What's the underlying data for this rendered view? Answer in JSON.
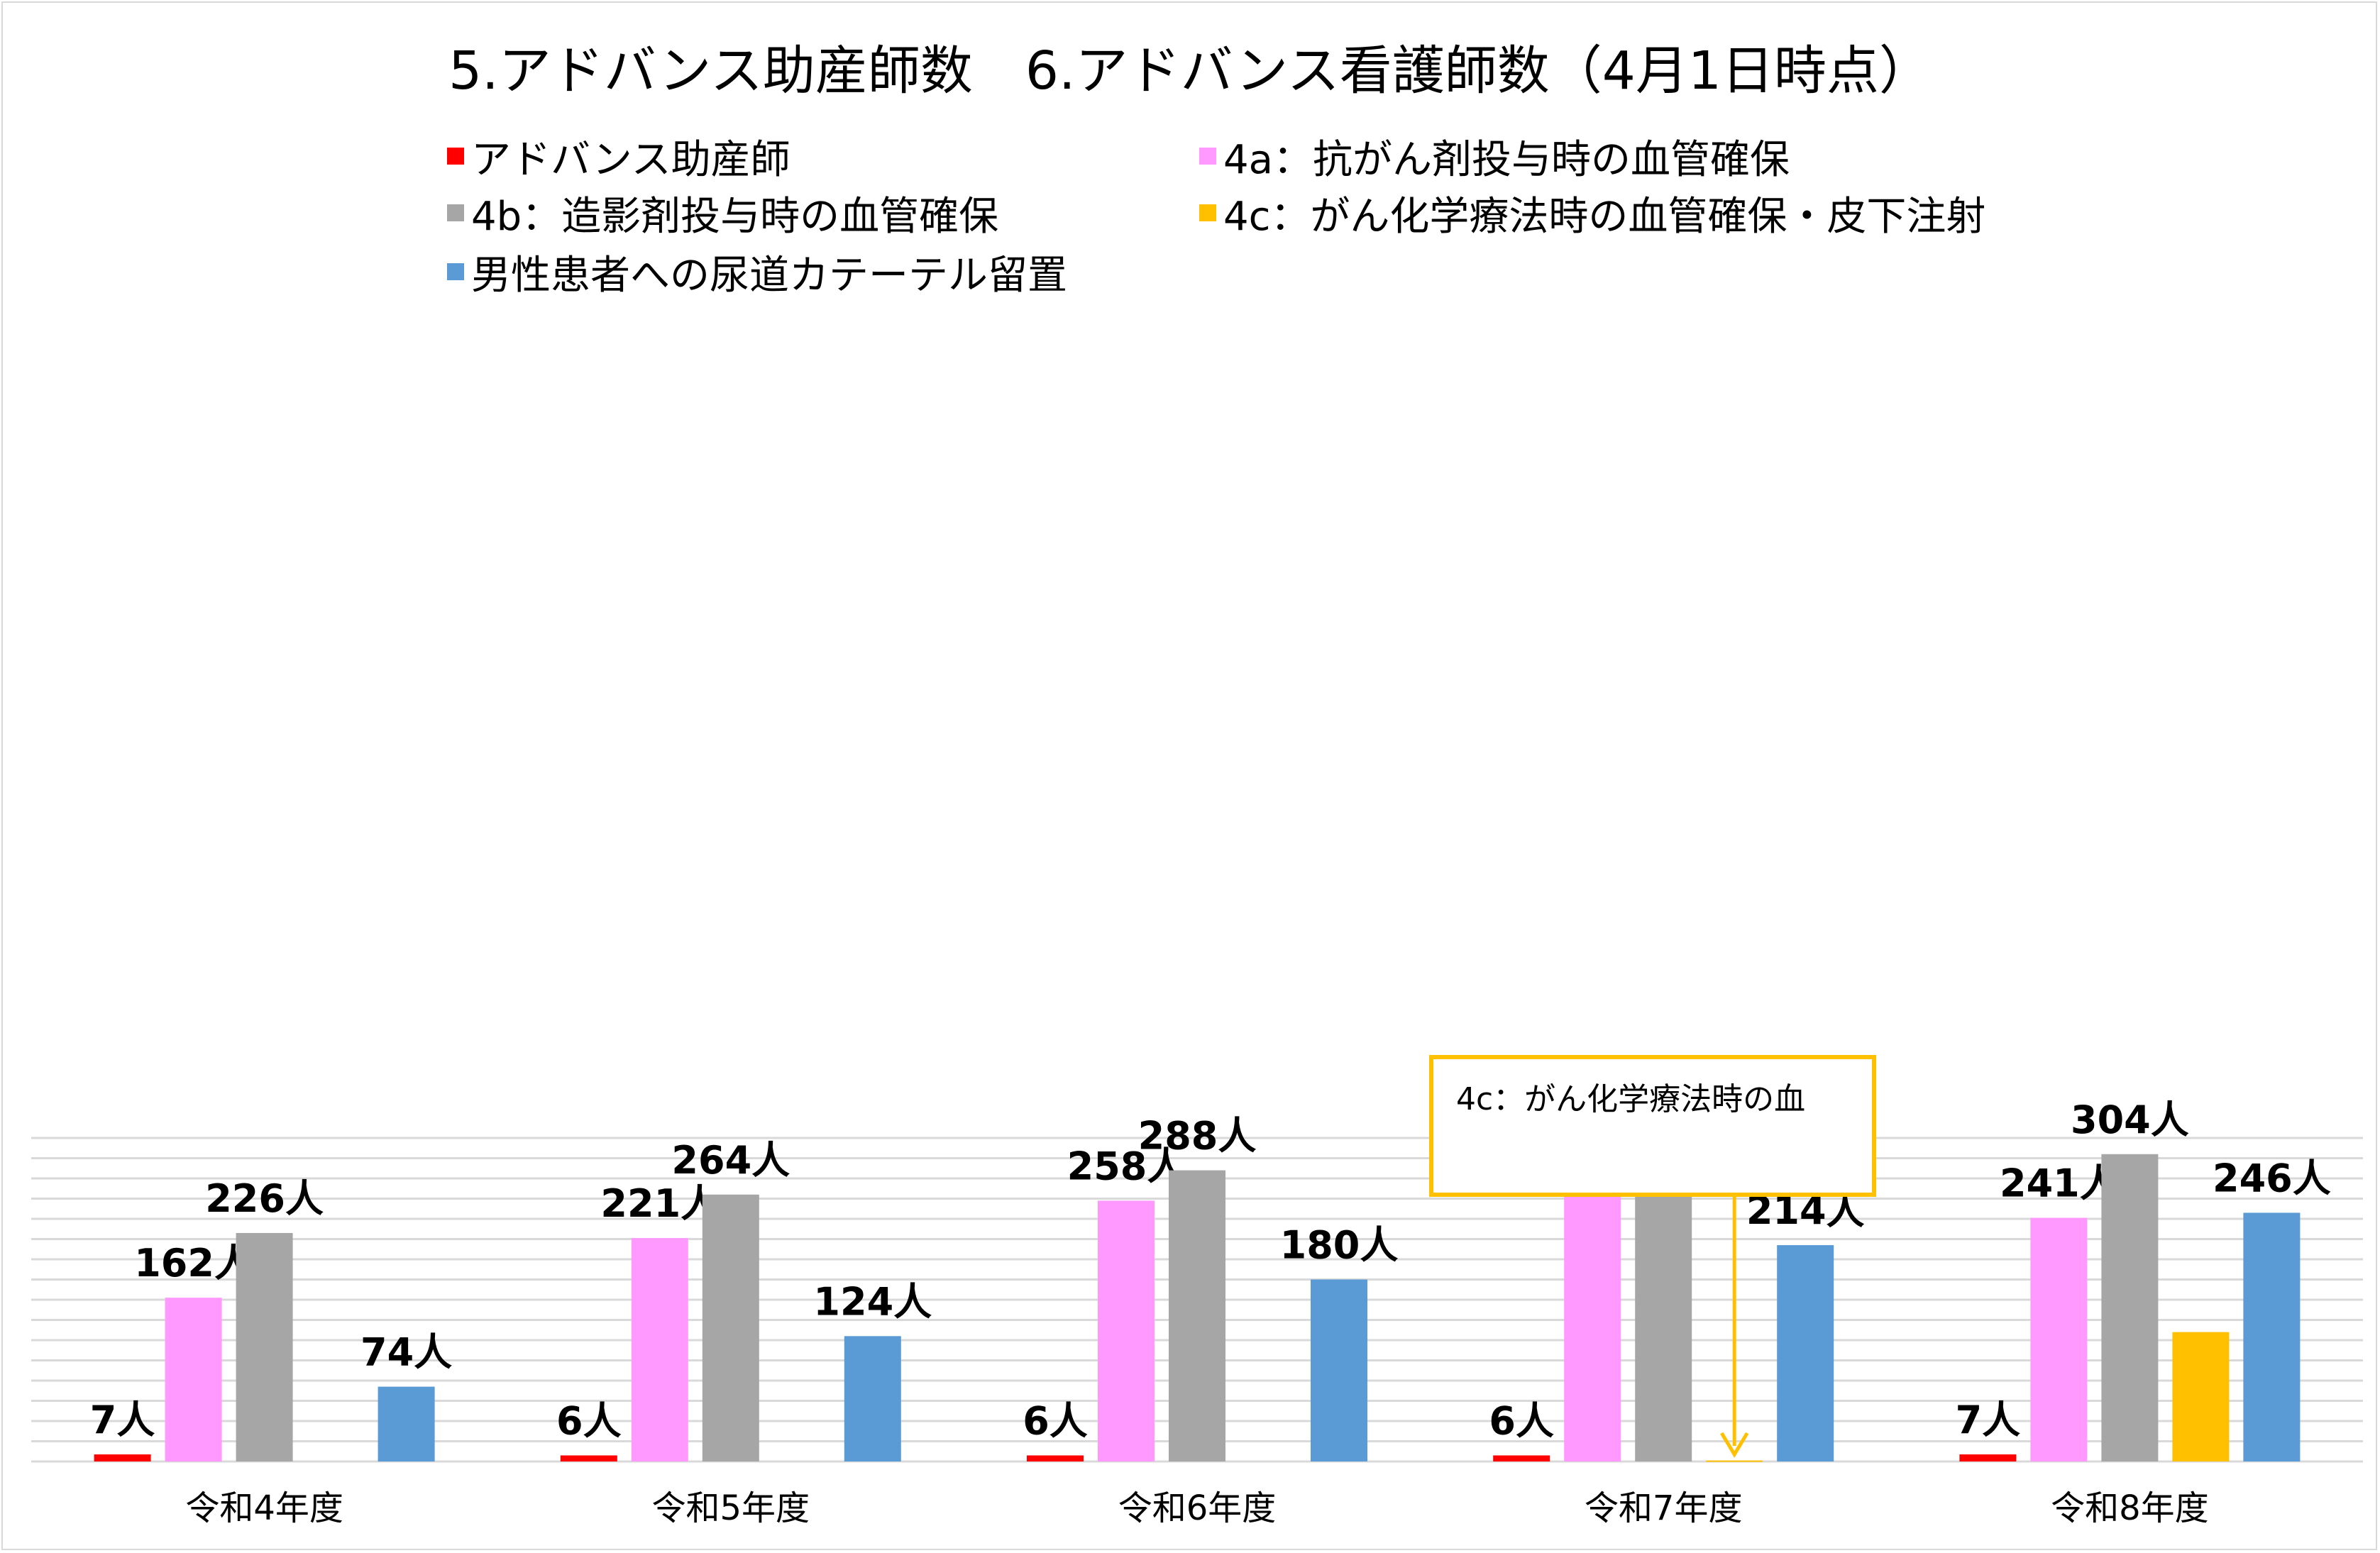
{
  "chart_data": {
    "type": "bar",
    "title": "5.アドバンス助産師数　6.アドバンス看護師数（4月1日時点）",
    "categories": [
      "令和4年度",
      "令和5年度",
      "令和6年度",
      "令和7年度",
      "令和8年度"
    ],
    "unit_suffix": "人",
    "ylim": [
      0,
      320
    ],
    "grid": true,
    "legend_position": "top",
    "series": [
      {
        "name": "アドバンス助産師",
        "color": "#ff0000",
        "values": [
          7,
          6,
          6,
          6,
          7
        ]
      },
      {
        "name": "4a：抗がん剤投与時の血管確保",
        "color": "#ff99ff",
        "values": [
          162,
          221,
          258,
          273,
          241
        ]
      },
      {
        "name": "4b：造影剤投与時の血管確保",
        "color": "#a6a6a6",
        "values": [
          226,
          264,
          288,
          303,
          304
        ]
      },
      {
        "name": "4c：がん化学療法時の血管確保・皮下注射",
        "color": "#ffc000",
        "values": [
          null,
          null,
          null,
          1,
          128
        ]
      },
      {
        "name": "男性患者への尿道カテーテル留置",
        "color": "#5b9bd5",
        "values": [
          74,
          124,
          180,
          214,
          246
        ]
      }
    ],
    "data_labels": [
      [
        "7人",
        "162人",
        "226人",
        null,
        "74人"
      ],
      [
        "6人",
        "221人",
        "264人",
        null,
        "124人"
      ],
      [
        "6人",
        "258人",
        "288人",
        null,
        "180人"
      ],
      [
        "6人",
        "273人",
        "303人",
        null,
        "214人"
      ],
      [
        "7人",
        "241人",
        "304人",
        null,
        "246人"
      ]
    ]
  },
  "callout": {
    "text": "4c：がん化学療法時の血",
    "color": "#ffc000"
  }
}
